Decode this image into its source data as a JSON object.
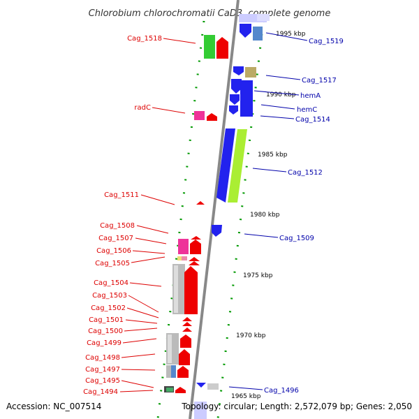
{
  "title": "Chlorobium chlorochromatii CaD3, complete genome",
  "accession": "Accession: NC_007514",
  "topology": "Topology: circular; Length: 2,572,079 bp; Genes: 2,050",
  "colors": {
    "left_label": "#dd0000",
    "right_label": "#0000aa",
    "backbone": "#888888",
    "tick": "#009900"
  },
  "kbp_labels": [
    "1995 kbp",
    "1990 kbp",
    "1985 kbp",
    "1980 kbp",
    "1975 kbp",
    "1970 kbp",
    "1965 kbp"
  ],
  "left_labels": [
    "Cag_1518",
    "radC",
    "Cag_1511",
    "Cag_1508",
    "Cag_1507",
    "Cag_1506",
    "Cag_1505",
    "Cag_1504",
    "Cag_1503",
    "Cag_1502",
    "Cag_1501",
    "Cag_1500",
    "Cag_1499",
    "Cag_1498",
    "Cag_1497",
    "Cag_1495",
    "Cag_1494"
  ],
  "right_labels": [
    "Cag_1519",
    "Cag_1517",
    "hemA",
    "hemC",
    "Cag_1514",
    "Cag_1512",
    "Cag_1509",
    "Cag_1496"
  ]
}
